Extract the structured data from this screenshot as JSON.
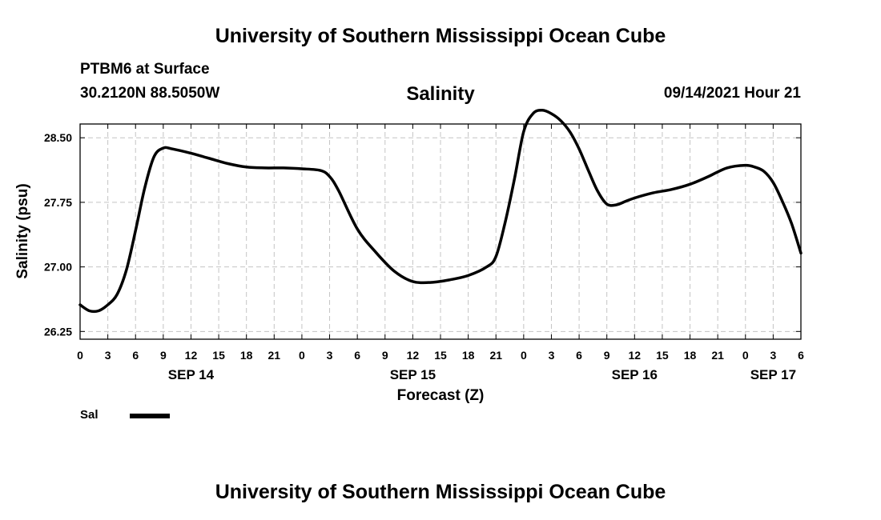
{
  "page": {
    "top_title": "University of Southern Mississippi Ocean Cube",
    "bottom_title": "University of Southern Mississippi Ocean Cube",
    "station": "PTBM6 at Surface",
    "location": "30.2120N  88.5050W",
    "timestamp": "09/14/2021 Hour 21"
  },
  "chart_data": {
    "type": "line",
    "title": "Salinity",
    "xlabel": "Forecast (Z)",
    "ylabel": "Salinity (psu)",
    "xlim": [
      0,
      78
    ],
    "ylim": [
      26.16,
      28.66
    ],
    "grid": true,
    "x_ticks": [
      0,
      3,
      6,
      9,
      12,
      15,
      18,
      21,
      24,
      27,
      30,
      33,
      36,
      39,
      42,
      45,
      48,
      51,
      54,
      57,
      60,
      63,
      66,
      69,
      72,
      75,
      78
    ],
    "x_tick_labels": [
      "0",
      "3",
      "6",
      "9",
      "12",
      "15",
      "18",
      "21",
      "0",
      "3",
      "6",
      "9",
      "12",
      "15",
      "18",
      "21",
      "0",
      "3",
      "6",
      "9",
      "12",
      "15",
      "18",
      "21",
      "0",
      "3",
      "6"
    ],
    "y_ticks": [
      26.25,
      27.0,
      27.75,
      28.5
    ],
    "y_tick_labels": [
      "26.25",
      "27.00",
      "27.75",
      "28.50"
    ],
    "date_labels": [
      {
        "x": 12,
        "label": "SEP 14"
      },
      {
        "x": 36,
        "label": "SEP 15"
      },
      {
        "x": 60,
        "label": "SEP 16"
      },
      {
        "x": 75,
        "label": "SEP 17"
      }
    ],
    "series": [
      {
        "name": "Sal",
        "x": [
          0,
          1,
          2,
          3,
          4,
          5,
          6,
          7,
          8,
          9,
          10,
          12,
          14,
          16,
          18,
          20,
          22,
          24,
          26,
          27,
          28,
          30,
          32,
          34,
          36,
          38,
          40,
          42,
          44,
          45,
          46,
          47,
          48,
          49,
          50,
          51,
          52,
          53,
          54,
          55,
          56,
          57,
          58,
          59,
          60,
          62,
          64,
          66,
          68,
          70,
          72,
          73,
          74,
          75,
          76,
          77,
          78
        ],
        "values": [
          26.56,
          26.49,
          26.49,
          26.56,
          26.68,
          26.96,
          27.42,
          27.92,
          28.28,
          28.38,
          28.37,
          28.32,
          28.26,
          28.2,
          28.16,
          28.15,
          28.15,
          28.14,
          28.12,
          28.05,
          27.88,
          27.44,
          27.17,
          26.95,
          26.83,
          26.82,
          26.85,
          26.9,
          27.0,
          27.12,
          27.52,
          28.02,
          28.57,
          28.78,
          28.82,
          28.78,
          28.7,
          28.57,
          28.37,
          28.12,
          27.88,
          27.73,
          27.72,
          27.76,
          27.8,
          27.86,
          27.9,
          27.96,
          28.05,
          28.15,
          28.18,
          28.16,
          28.11,
          27.98,
          27.76,
          27.5,
          27.16
        ]
      }
    ],
    "legend": {
      "position": "bottom-left",
      "label": "Sal"
    }
  }
}
